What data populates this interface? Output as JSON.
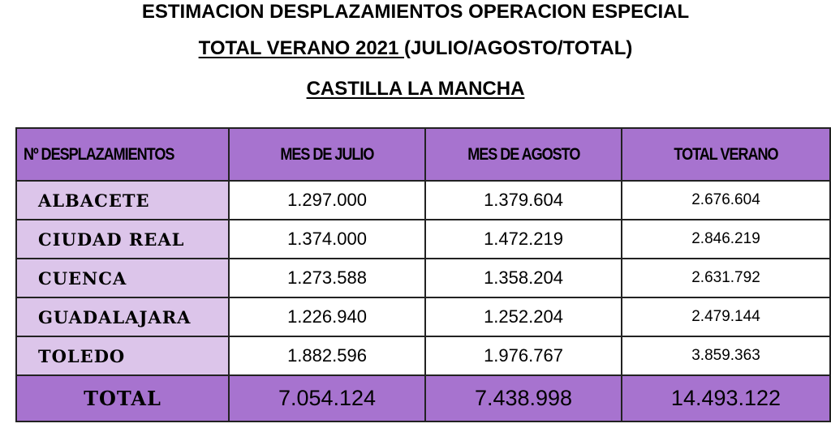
{
  "heading": {
    "line1": "ESTIMACION DESPLAZAMIENTOS OPERACION ESPECIAL",
    "line2_underlined": "TOTAL VERANO 2021 ",
    "line2_rest": "(JULIO/AGOSTO/TOTAL)",
    "line3": "CASTILLA LA MANCHA"
  },
  "table": {
    "headers": [
      "Nº DESPLAZAMIENTOS",
      "MES DE JULIO",
      "MES DE AGOSTO",
      "TOTAL VERANO"
    ],
    "rows": [
      {
        "province": "ALBACETE",
        "july": "1.297.000",
        "august": "1.379.604",
        "total": "2.676.604"
      },
      {
        "province": "CIUDAD REAL",
        "july": "1.374.000",
        "august": "1.472.219",
        "total": "2.846.219"
      },
      {
        "province": "CUENCA",
        "july": "1.273.588",
        "august": "1.358.204",
        "total": "2.631.792"
      },
      {
        "province": "GUADALAJARA",
        "july": "1.226.940",
        "august": "1.252.204",
        "total": "2.479.144"
      },
      {
        "province": "TOLEDO",
        "july": "1.882.596",
        "august": "1.976.767",
        "total": "3.859.363"
      }
    ],
    "total_row": {
      "label": "TOTAL",
      "july": "7.054.124",
      "august": "7.438.998",
      "total": "14.493.122"
    }
  },
  "colors": {
    "header_bg": "#a773cf",
    "province_bg": "#dcc5ea",
    "cell_bg": "#ffffff",
    "border": "#222222"
  }
}
